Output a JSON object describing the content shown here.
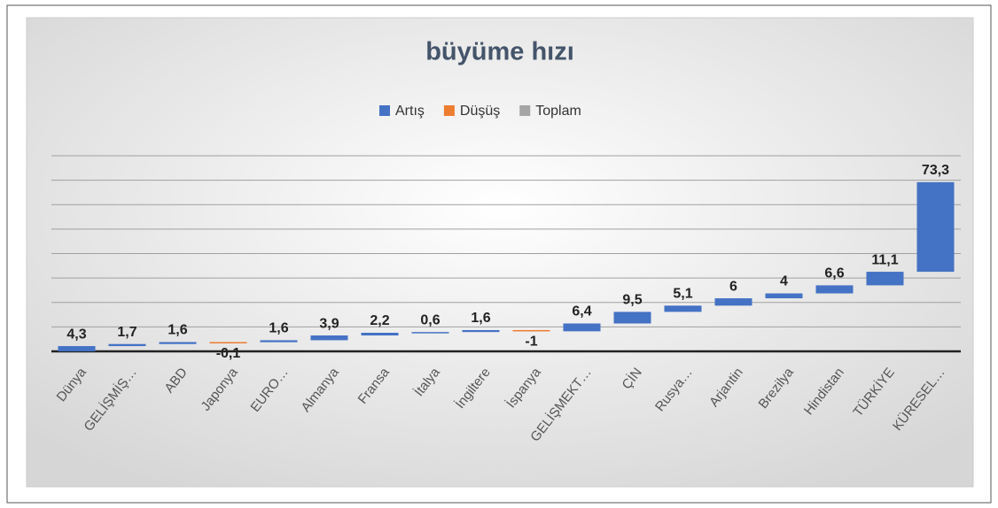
{
  "chart_data": {
    "type": "waterfall",
    "title": "büyüme hızı",
    "legend": [
      {
        "name": "Artış",
        "color": "#4472c4"
      },
      {
        "name": "Düşüş",
        "color": "#ed7d31"
      },
      {
        "name": "Toplam",
        "color": "#a5a5a5"
      }
    ],
    "categories": [
      "Dünya",
      "GELİŞMİŞ…",
      "ABD",
      "Japonya",
      "EURO…",
      "Almanya",
      "Fransa",
      "İtalya",
      "İngiltere",
      "İspanya",
      "GELİŞMEKT…",
      "ÇİN",
      "Rusya…",
      "Arjantin",
      "Brezilya",
      "Hindistan",
      "TÜRKİYE",
      "KÜRESEL…"
    ],
    "values": [
      4.3,
      1.7,
      1.6,
      -0.1,
      1.6,
      3.9,
      2.2,
      0.6,
      1.6,
      -1,
      6.4,
      9.5,
      5.1,
      6,
      4,
      6.6,
      11.1,
      73.3
    ],
    "value_labels": [
      "4,3",
      "1,7",
      "1,6",
      "-0,1",
      "1,6",
      "3,9",
      "2,2",
      "0,6",
      "1,6",
      "-1",
      "6,4",
      "9,5",
      "5,1",
      "6",
      "4",
      "6,6",
      "11,1",
      "73,3"
    ],
    "ylim": [
      0,
      160
    ],
    "yticks": [
      0,
      20,
      40,
      60,
      80,
      100,
      120,
      140,
      160
    ],
    "grid": true
  }
}
